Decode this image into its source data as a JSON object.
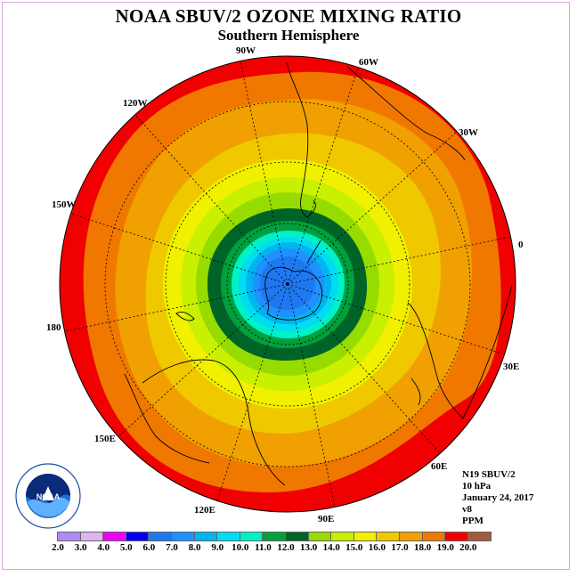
{
  "header": {
    "title": "NOAA SBUV/2 OZONE MIXING RATIO",
    "subtitle": "Southern Hemisphere"
  },
  "map": {
    "projection": "south polar stereographic",
    "longitude_labels": [
      "90W",
      "60W",
      "30W",
      "0",
      "30E",
      "60E",
      "90E",
      "120E",
      "150E",
      "180",
      "150W",
      "120W"
    ]
  },
  "info": {
    "satellite": "N19 SBUV/2",
    "level": "10 hPa",
    "date": "January 24, 2017",
    "version": "v8",
    "units": "PPM"
  },
  "colorbar": {
    "labels": [
      "2.0",
      "3.0",
      "4.0",
      "5.0",
      "6.0",
      "7.0",
      "8.0",
      "9.0",
      "10.0",
      "11.0",
      "12.0",
      "13.0",
      "14.0",
      "15.0",
      "16.0",
      "17.0",
      "18.0",
      "19.0",
      "20.0"
    ],
    "colors": [
      "#b08af0",
      "#dcb4f0",
      "#f000f0",
      "#0000f0",
      "#1e78f0",
      "#1e90ff",
      "#00b4f0",
      "#00dcf0",
      "#00f0c8",
      "#00a03c",
      "#006428",
      "#96dc00",
      "#c8f000",
      "#f0f000",
      "#f0c800",
      "#f0a000",
      "#f07800",
      "#f00000",
      "#a05a3c"
    ]
  },
  "logo": {
    "text": "NOAA",
    "ring_text": "NATIONAL OCEANIC AND ATMOSPHERIC ADMINISTRATION · U.S. DEPARTMENT OF COMMERCE"
  }
}
